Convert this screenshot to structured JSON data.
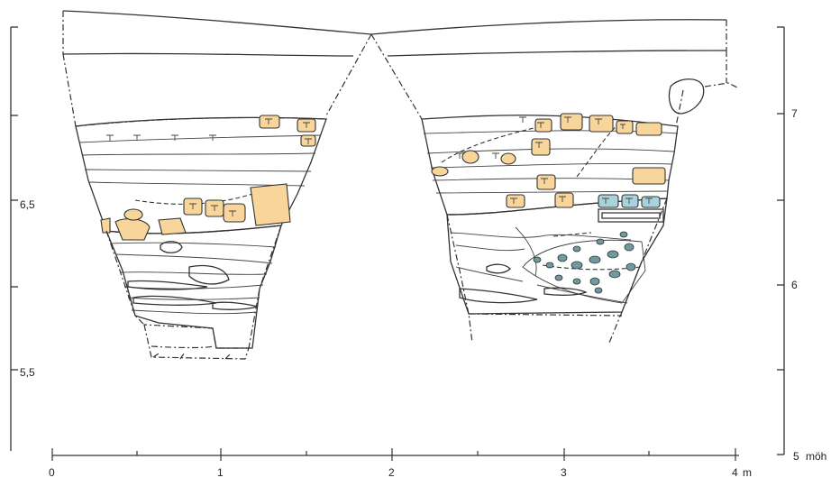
{
  "colors": {
    "sand": "#f8d59a",
    "clay": "#a9d3dc",
    "tree": "#8fda8f",
    "line": "#333333",
    "pebble": "#6e9aa0"
  },
  "x_axis": {
    "ticks": [
      "0",
      "1",
      "2",
      "3",
      "4"
    ],
    "unit": "m"
  },
  "left_axis": {
    "ticks": [
      "6,5",
      "5,5"
    ]
  },
  "right_axis": {
    "ticks": [
      "7",
      "6",
      "5"
    ],
    "unit": "möh"
  }
}
